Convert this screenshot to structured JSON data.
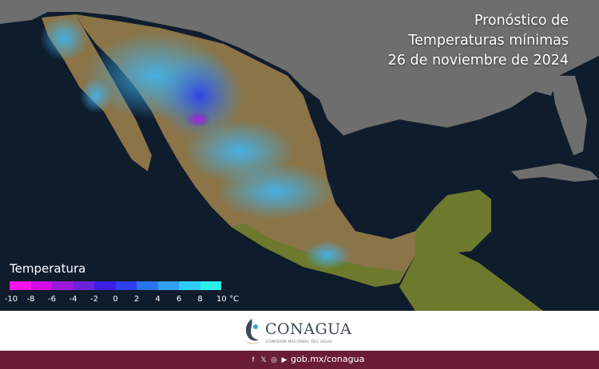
{
  "title": {
    "line1": "Pronóstico de",
    "line2": "Temperaturas mínimas",
    "line3": "26 de noviembre de 2024"
  },
  "legend": {
    "title": "Temperatura",
    "colors": [
      "#ff12ee",
      "#d40be6",
      "#9d19dd",
      "#6d23dd",
      "#3a1fe6",
      "#2d3fee",
      "#2b74f0",
      "#2fa0f4",
      "#2dcdf5",
      "#2bf0e8"
    ],
    "ticks": [
      "-10",
      "-8",
      "-6",
      "-4",
      "-2",
      "0",
      "2",
      "4",
      "6",
      "8",
      "10 °C"
    ]
  },
  "map": {
    "ocean_color": "#0f1c2c",
    "land_outside_color": "#6e6e6e",
    "terrain_color": "#8a7448",
    "coast_green_color": "#6d7a2e",
    "cold_color": "#2f7fe6",
    "very_cold_color": "#2d3fee",
    "coldest_color": "#9d19dd",
    "mild_color": "#4fc4f2"
  },
  "footer": {
    "logo_word": "CONAGUA",
    "logo_sub": "COMISIÓN NACIONAL DEL AGUA",
    "website": "gob.mx/conagua",
    "social_icons": [
      "facebook-icon",
      "x-icon",
      "instagram-icon",
      "youtube-icon"
    ],
    "bar_color": "#6b1d33"
  }
}
